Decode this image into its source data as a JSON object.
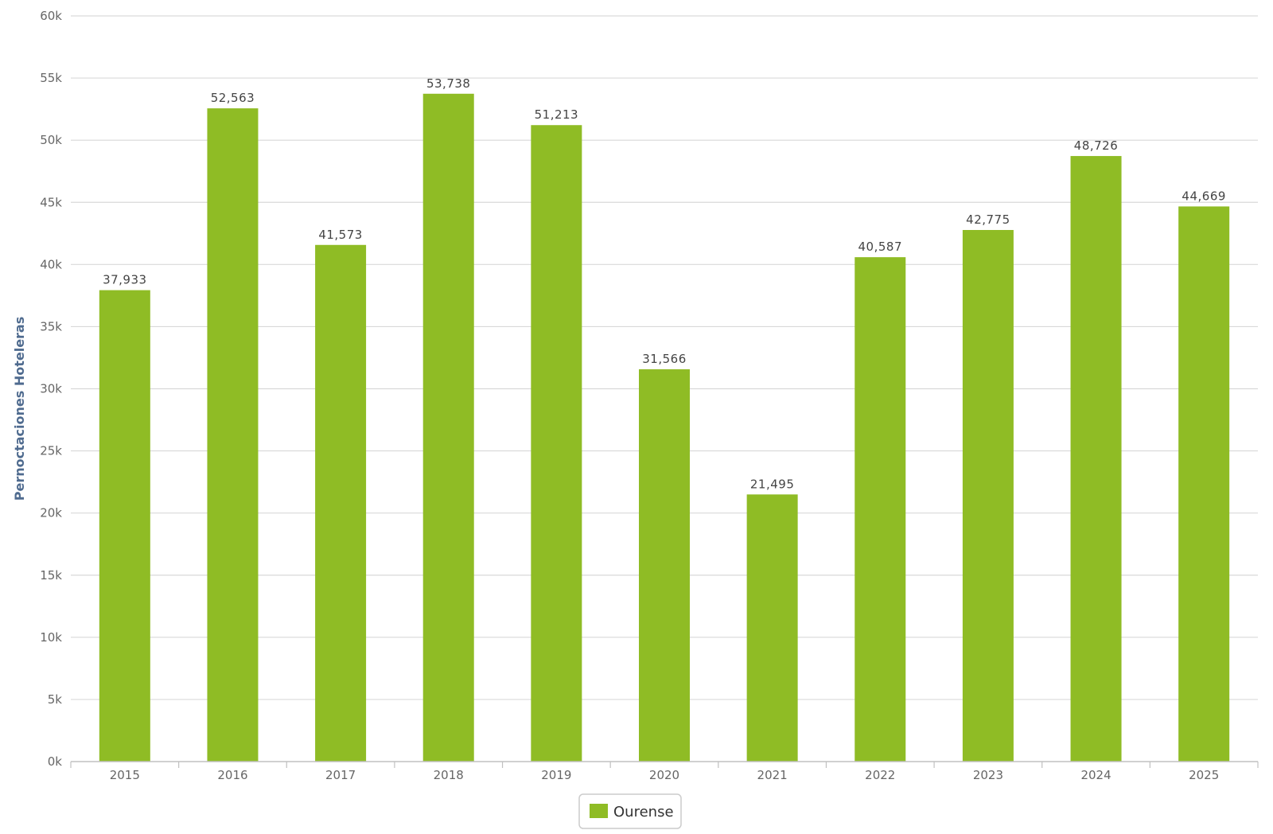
{
  "chart_data": {
    "type": "bar",
    "ylabel": "Pernoctaciones Hoteleras",
    "xlabel": "",
    "ylim": [
      0,
      60000
    ],
    "yticks": [
      0,
      5000,
      10000,
      15000,
      20000,
      25000,
      30000,
      35000,
      40000,
      45000,
      50000,
      55000,
      60000
    ],
    "ytick_labels": [
      "0k",
      "5k",
      "10k",
      "15k",
      "20k",
      "25k",
      "30k",
      "35k",
      "40k",
      "45k",
      "50k",
      "55k",
      "60k"
    ],
    "categories": [
      "2015",
      "2016",
      "2017",
      "2018",
      "2019",
      "2020",
      "2021",
      "2022",
      "2023",
      "2024",
      "2025"
    ],
    "series": [
      {
        "name": "Ourense",
        "color": "#8fbc25",
        "values": [
          37933,
          52563,
          41573,
          53738,
          51213,
          31566,
          21495,
          40587,
          42775,
          48726,
          44669
        ],
        "labels": [
          "37,933",
          "52,563",
          "41,573",
          "53,738",
          "51,213",
          "31,566",
          "21,495",
          "40,587",
          "42,775",
          "48,726",
          "44,669"
        ]
      }
    ],
    "grid": true,
    "gridline_color": "#d9d9d9",
    "legend_position": "bottom-center"
  }
}
